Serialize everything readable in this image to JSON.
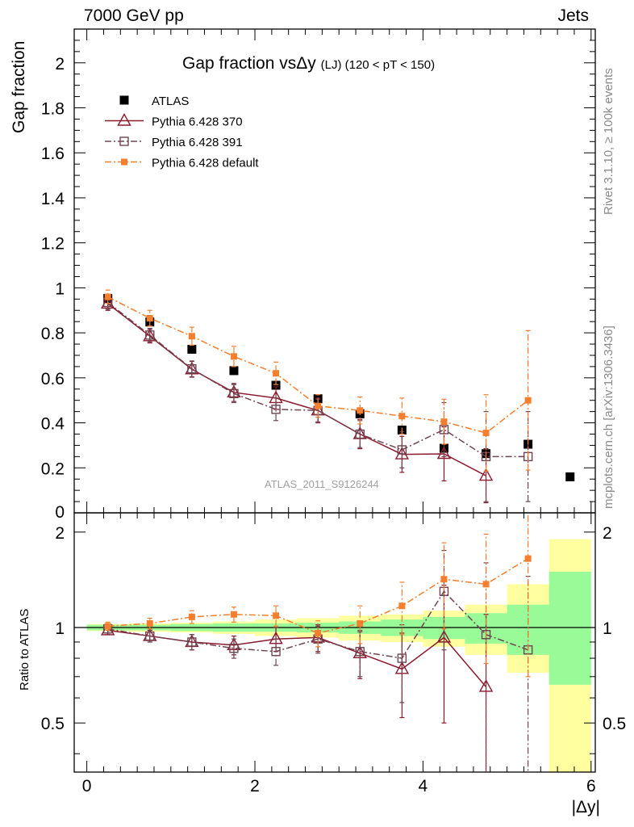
{
  "header": {
    "energy": "7000 GeV pp",
    "process": "Jets"
  },
  "side_texts": {
    "rivet": "Rivet 3.1.10, ≥ 100k events",
    "mcplots": "mcplots.cern.ch [arXiv:1306.3436]"
  },
  "watermark": "ATLAS_2011_S9126244",
  "colors": {
    "atlas": "#000000",
    "p370": "#8b1a2e",
    "p391": "#6e4450",
    "pdef": "#f47f2e",
    "band_inner": "#98fb98",
    "band_outer": "#ffff9f"
  },
  "chart_data": [
    {
      "type": "scatter",
      "title": "Gap fraction vsΔy",
      "title_suffix": "(LJ) (120 < pT < 150)",
      "xlabel": "|Δy|",
      "ylabel": "Gap fraction",
      "xlim": [
        -0.15,
        6.05
      ],
      "ylim": [
        0,
        2.15
      ],
      "xticks": [
        0,
        2,
        4,
        6
      ],
      "yticks": [
        0,
        0.2,
        0.4,
        0.6,
        0.8,
        1,
        1.2,
        1.4,
        1.6,
        1.8,
        2
      ],
      "ytick_labels": [
        "0",
        "0.2",
        "0.4",
        "0.6",
        "0.8",
        "1",
        "1.2",
        "1.4",
        "1.6",
        "1.8",
        "2"
      ],
      "x": [
        0.25,
        0.75,
        1.25,
        1.75,
        2.25,
        2.75,
        3.25,
        3.75,
        4.25,
        4.75,
        5.25,
        5.75
      ],
      "legend_position": "top-left",
      "series": [
        {
          "name": "ATLAS",
          "key": "atlas",
          "marker": "filled-square",
          "line": "none",
          "values": [
            0.953,
            0.848,
            0.727,
            0.632,
            0.567,
            0.507,
            0.44,
            0.368,
            0.287,
            0.263,
            0.305,
            0.16
          ]
        },
        {
          "name": "Pythia 6.428 370",
          "key": "p370",
          "marker": "open-triangle",
          "line": "solid",
          "values": [
            0.93,
            0.785,
            0.638,
            0.535,
            0.51,
            0.455,
            0.35,
            0.26,
            0.262,
            0.165,
            null,
            null
          ],
          "errors": [
            0.03,
            0.03,
            0.035,
            0.04,
            0.05,
            0.055,
            0.065,
            0.08,
            0.12,
            0.12,
            null,
            null
          ]
        },
        {
          "name": "Pythia 6.428 391",
          "key": "p391",
          "marker": "open-square",
          "line": "dashdot",
          "values": [
            0.935,
            0.79,
            0.64,
            0.53,
            0.46,
            0.455,
            0.35,
            0.28,
            0.37,
            0.25,
            0.25,
            null
          ],
          "errors": [
            0.03,
            0.03,
            0.035,
            0.04,
            0.05,
            0.05,
            0.06,
            0.08,
            0.12,
            0.2,
            0.2,
            null
          ]
        },
        {
          "name": "Pythia 6.428 default",
          "key": "pdef",
          "marker": "small-filled-square",
          "line": "dashdot",
          "values": [
            0.96,
            0.865,
            0.785,
            0.695,
            0.62,
            0.475,
            0.455,
            0.43,
            0.405,
            0.355,
            0.5,
            null
          ],
          "errors": [
            0.03,
            0.035,
            0.04,
            0.045,
            0.05,
            0.05,
            0.06,
            0.08,
            0.1,
            0.17,
            0.31,
            null
          ]
        }
      ]
    },
    {
      "type": "line",
      "title": "",
      "ylabel": "Ratio to ATLAS",
      "xlabel": "|Δy|",
      "xlim": [
        -0.15,
        6.05
      ],
      "ylim": [
        0.35,
        2.3
      ],
      "scale": "log",
      "xticks": [
        0,
        2,
        4,
        6
      ],
      "xtick_labels": [
        "0",
        "2",
        "4",
        "6"
      ],
      "yticks": [
        0.5,
        1,
        2
      ],
      "ytick_labels": [
        "0.5",
        "1",
        "2"
      ],
      "x": [
        0.25,
        0.75,
        1.25,
        1.75,
        2.25,
        2.75,
        3.25,
        3.75,
        4.25,
        4.75,
        5.25,
        5.75
      ],
      "reference_band": {
        "inner": [
          0.02,
          0.02,
          0.025,
          0.03,
          0.03,
          0.035,
          0.045,
          0.06,
          0.08,
          0.11,
          0.18,
          0.5
        ],
        "outer": [
          0.025,
          0.03,
          0.035,
          0.045,
          0.06,
          0.07,
          0.09,
          0.1,
          0.13,
          0.18,
          0.28,
          0.9
        ],
        "inner_low": [
          0.98,
          0.98,
          0.975,
          0.97,
          0.97,
          0.965,
          0.955,
          0.94,
          0.92,
          0.89,
          0.82,
          0.66
        ],
        "inner_high": [
          1.02,
          1.02,
          1.025,
          1.03,
          1.03,
          1.035,
          1.045,
          1.06,
          1.08,
          1.11,
          1.18,
          1.5
        ],
        "outer_low": [
          0.975,
          0.97,
          0.965,
          0.955,
          0.94,
          0.93,
          0.91,
          0.9,
          0.87,
          0.82,
          0.72,
          0.35
        ],
        "outer_high": [
          1.025,
          1.03,
          1.035,
          1.045,
          1.06,
          1.07,
          1.09,
          1.1,
          1.13,
          1.18,
          1.37,
          1.9
        ]
      },
      "series": [
        {
          "name": "Pythia 6.428 370",
          "key": "p370",
          "marker": "open-triangle",
          "line": "solid",
          "values": [
            0.98,
            0.94,
            0.9,
            0.88,
            0.92,
            0.93,
            0.83,
            0.74,
            0.93,
            0.65,
            null,
            null
          ],
          "errors": [
            0.03,
            0.04,
            0.05,
            0.06,
            0.08,
            0.09,
            0.14,
            0.22,
            0.43,
            0.45,
            null,
            null
          ]
        },
        {
          "name": "Pythia 6.428 391",
          "key": "p391",
          "marker": "open-square",
          "line": "dashdot",
          "values": [
            0.99,
            0.94,
            0.9,
            0.86,
            0.84,
            0.92,
            0.84,
            0.8,
            1.3,
            0.95,
            0.85,
            null
          ],
          "errors": [
            0.03,
            0.04,
            0.05,
            0.06,
            0.08,
            0.09,
            0.14,
            0.22,
            0.45,
            0.65,
            0.6,
            null
          ]
        },
        {
          "name": "Pythia 6.428 default",
          "key": "pdef",
          "marker": "small-filled-square",
          "line": "dashdot",
          "values": [
            1.01,
            1.03,
            1.08,
            1.1,
            1.09,
            0.96,
            1.03,
            1.17,
            1.42,
            1.37,
            1.65,
            null
          ],
          "errors": [
            0.03,
            0.04,
            0.05,
            0.06,
            0.08,
            0.09,
            0.14,
            0.22,
            0.43,
            0.6,
            0.95,
            null
          ]
        }
      ]
    }
  ]
}
